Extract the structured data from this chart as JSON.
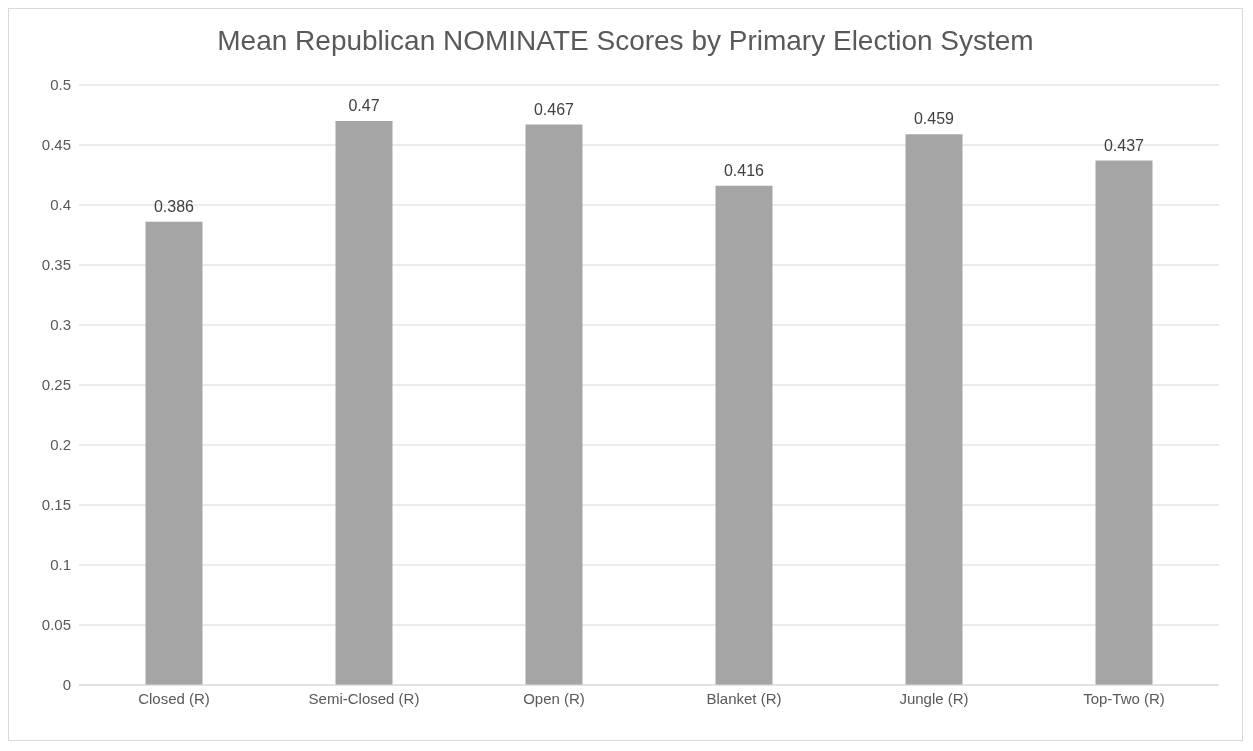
{
  "chart_data": {
    "type": "bar",
    "title": "Mean Republican NOMINATE Scores by Primary Election System",
    "categories": [
      "Closed (R)",
      "Semi-Closed (R)",
      "Open (R)",
      "Blanket (R)",
      "Jungle (R)",
      "Top-Two (R)"
    ],
    "values": [
      0.386,
      0.47,
      0.467,
      0.416,
      0.459,
      0.437
    ],
    "color": "#a5a5a5",
    "ylim": [
      0,
      0.5
    ],
    "yticks": [
      0,
      0.05,
      0.1,
      0.15,
      0.2,
      0.25,
      0.3,
      0.35,
      0.4,
      0.45,
      0.5
    ],
    "grid": "y",
    "data_labels": true
  }
}
